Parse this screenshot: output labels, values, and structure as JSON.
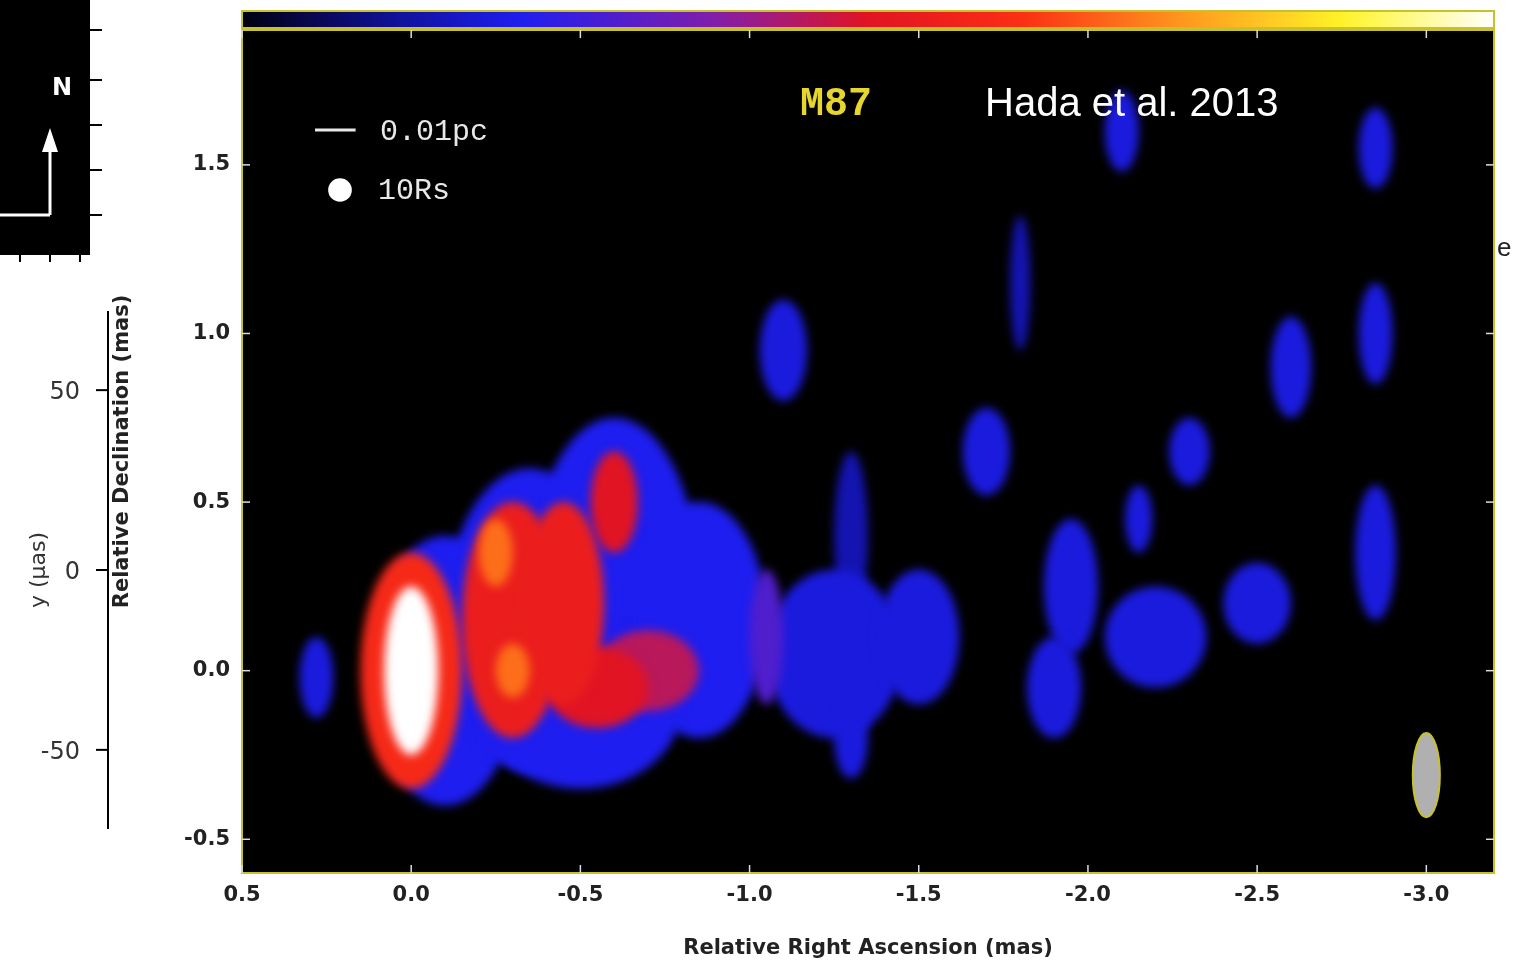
{
  "chart_data": {
    "type": "image",
    "title": "M87",
    "subtitle": "Hada et al. 2013",
    "x_label": "Relative Right Ascension (mas)",
    "y_label": "Relative Declination (mas)",
    "xlim": [
      0.5,
      -3.2
    ],
    "xticks": [
      0.5,
      {
        "value": 0,
        "label": "0.0"
      },
      -0.5,
      {
        "value": -1,
        "label": "-1.0"
      },
      -1.5,
      {
        "value": -2,
        "label": "-2.0"
      },
      -2.5,
      {
        "value": -3,
        "label": "-3.0"
      }
    ],
    "ylim": [
      -0.6,
      1.9
    ],
    "yticks": [
      -0.5,
      {
        "value": 0,
        "label": "0.0"
      },
      0.5,
      {
        "value": 1,
        "label": "1.0"
      },
      1.5
    ],
    "grid": false,
    "color_range": [
      0,
      1
    ],
    "components": [
      {
        "x": -1.8,
        "y": 1.15,
        "rx": 0.03,
        "ry": 0.2,
        "intensity": 0.15
      },
      {
        "x": -1.3,
        "y": 0.4,
        "rx": 0.05,
        "ry": 0.25,
        "intensity": 0.15
      },
      {
        "x": -0.1,
        "y": 0.0,
        "rx": 0.22,
        "ry": 0.4,
        "intensity": 0.22
      },
      {
        "x": -0.35,
        "y": 0.15,
        "rx": 0.25,
        "ry": 0.45,
        "intensity": 0.22
      },
      {
        "x": -0.6,
        "y": 0.25,
        "rx": 0.25,
        "ry": 0.5,
        "intensity": 0.22
      },
      {
        "x": -0.85,
        "y": 0.15,
        "rx": 0.2,
        "ry": 0.35,
        "intensity": 0.22
      },
      {
        "x": -0.5,
        "y": -0.1,
        "rx": 0.3,
        "ry": 0.25,
        "intensity": 0.22
      },
      {
        "x": 0.28,
        "y": -0.02,
        "rx": 0.05,
        "ry": 0.12,
        "intensity": 0.2
      },
      {
        "x": -1.25,
        "y": 0.05,
        "rx": 0.2,
        "ry": 0.25,
        "intensity": 0.2
      },
      {
        "x": -1.5,
        "y": 0.1,
        "rx": 0.12,
        "ry": 0.2,
        "intensity": 0.2
      },
      {
        "x": -1.1,
        "y": 0.95,
        "rx": 0.07,
        "ry": 0.15,
        "intensity": 0.2
      },
      {
        "x": -1.7,
        "y": 0.65,
        "rx": 0.07,
        "ry": 0.13,
        "intensity": 0.2
      },
      {
        "x": -1.95,
        "y": 0.25,
        "rx": 0.08,
        "ry": 0.2,
        "intensity": 0.2
      },
      {
        "x": -1.9,
        "y": -0.05,
        "rx": 0.08,
        "ry": 0.15,
        "intensity": 0.2
      },
      {
        "x": -2.2,
        "y": 0.1,
        "rx": 0.15,
        "ry": 0.15,
        "intensity": 0.2
      },
      {
        "x": -2.5,
        "y": 0.2,
        "rx": 0.1,
        "ry": 0.12,
        "intensity": 0.2
      },
      {
        "x": -2.6,
        "y": 0.9,
        "rx": 0.06,
        "ry": 0.15,
        "intensity": 0.2
      },
      {
        "x": -2.85,
        "y": 0.35,
        "rx": 0.06,
        "ry": 0.2,
        "intensity": 0.2
      },
      {
        "x": -2.85,
        "y": 1.0,
        "rx": 0.05,
        "ry": 0.15,
        "intensity": 0.2
      },
      {
        "x": -2.85,
        "y": 1.55,
        "rx": 0.05,
        "ry": 0.12,
        "intensity": 0.2
      },
      {
        "x": -2.1,
        "y": 1.6,
        "rx": 0.05,
        "ry": 0.12,
        "intensity": 0.2
      },
      {
        "x": -1.3,
        "y": -0.2,
        "rx": 0.05,
        "ry": 0.12,
        "intensity": 0.2
      },
      {
        "x": -2.15,
        "y": 0.45,
        "rx": 0.04,
        "ry": 0.1,
        "intensity": 0.2
      },
      {
        "x": -2.3,
        "y": 0.65,
        "rx": 0.06,
        "ry": 0.1,
        "intensity": 0.2
      },
      {
        "x": -1.05,
        "y": 0.1,
        "rx": 0.05,
        "ry": 0.2,
        "intensity": 0.3
      },
      {
        "x": -0.7,
        "y": 0.0,
        "rx": 0.15,
        "ry": 0.12,
        "intensity": 0.45
      },
      {
        "x": -0.6,
        "y": 0.5,
        "rx": 0.07,
        "ry": 0.15,
        "intensity": 0.5
      },
      {
        "x": -0.55,
        "y": -0.05,
        "rx": 0.15,
        "ry": 0.12,
        "intensity": 0.5
      },
      {
        "x": -0.3,
        "y": 0.15,
        "rx": 0.15,
        "ry": 0.35,
        "intensity": 0.55
      },
      {
        "x": -0.45,
        "y": 0.2,
        "rx": 0.12,
        "ry": 0.3,
        "intensity": 0.55
      },
      {
        "x": 0.0,
        "y": 0.0,
        "rx": 0.15,
        "ry": 0.35,
        "intensity": 0.6
      },
      {
        "x": -0.25,
        "y": 0.35,
        "rx": 0.05,
        "ry": 0.1,
        "intensity": 0.7
      },
      {
        "x": -0.3,
        "y": 0.0,
        "rx": 0.05,
        "ry": 0.08,
        "intensity": 0.7
      },
      {
        "x": 0.0,
        "y": 0.0,
        "rx": 0.08,
        "ry": 0.25,
        "intensity": 1.0
      }
    ],
    "beam": {
      "x": -3.0,
      "y": -0.31,
      "width": 0.08,
      "height": 0.25
    },
    "scale_bars": [
      {
        "label": "0.01pc",
        "length": 0.12
      },
      {
        "label": "10Rs",
        "diameter": 0.07
      }
    ],
    "inset": {
      "y_label": "y (μas)",
      "ylim": [
        -72,
        72
      ],
      "yticks": [
        50,
        0,
        -50
      ],
      "north_label": "N"
    },
    "stray_text": "e"
  }
}
